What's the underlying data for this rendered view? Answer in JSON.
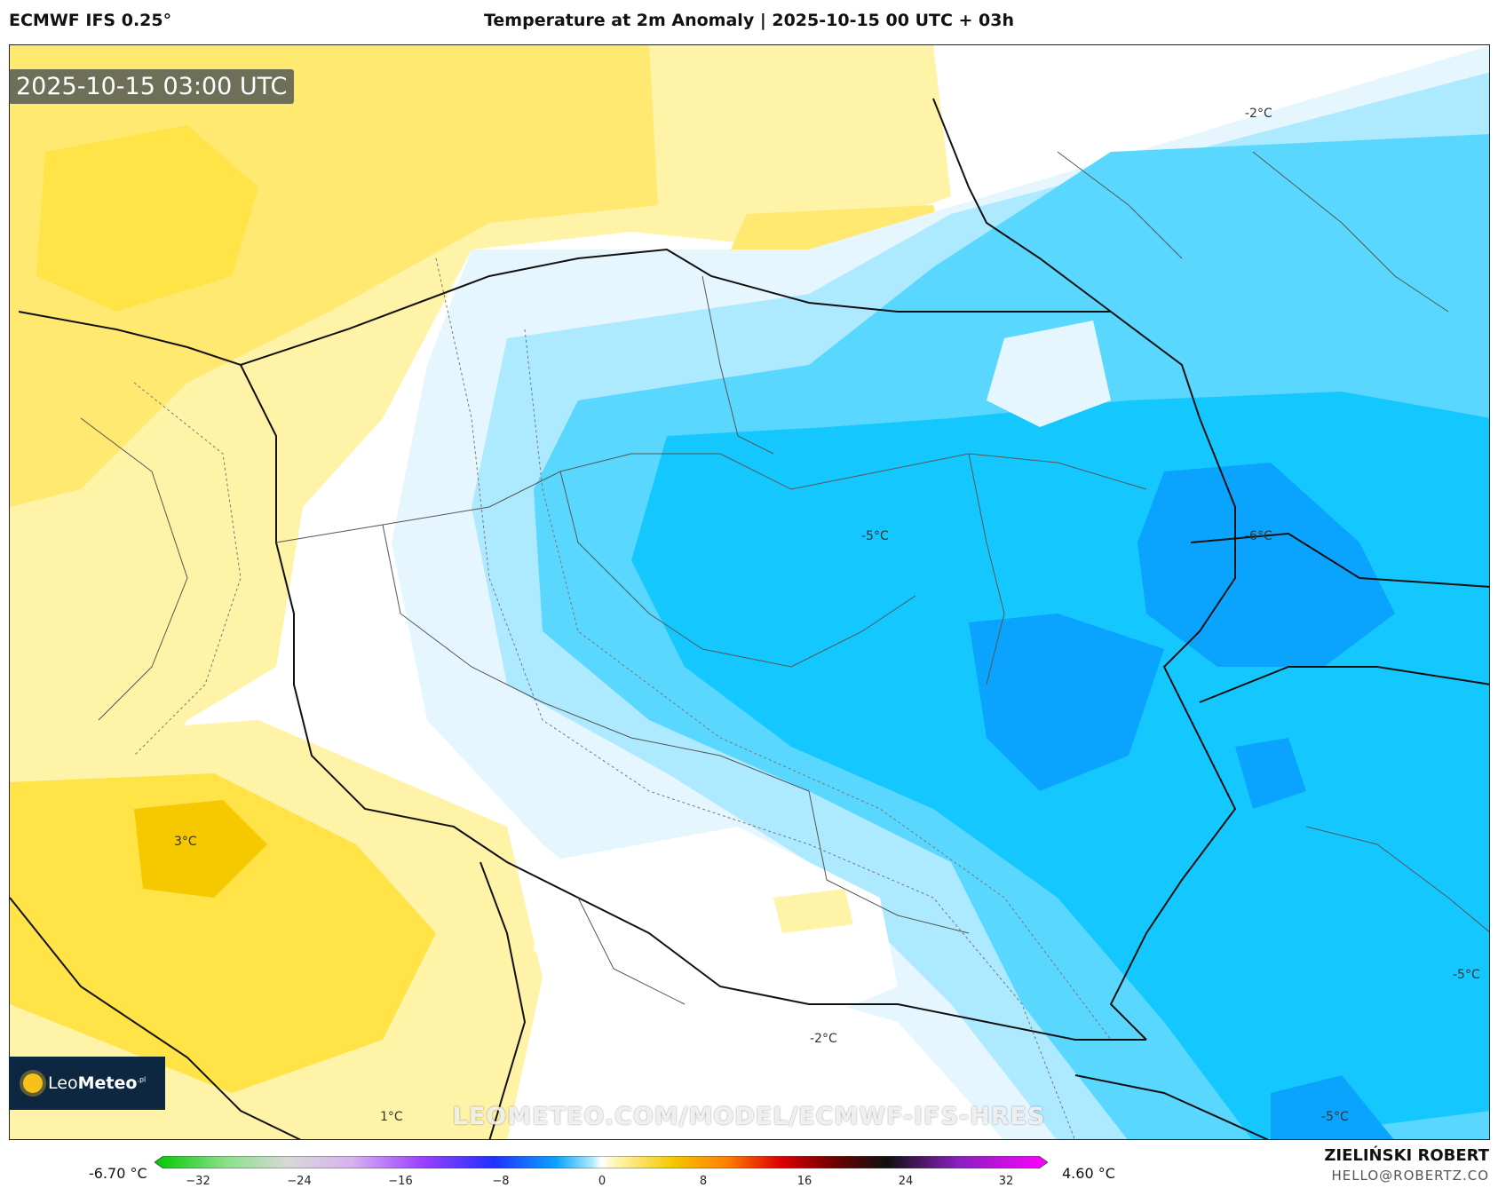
{
  "header": {
    "model": "ECMWF IFS 0.25°",
    "title": "Temperature at 2m Anomaly | 2025-10-15 00 UTC + 03h"
  },
  "map": {
    "timestamp": "2025-10-15 03:00 UTC",
    "watermark": "LEOMETEO.COM/MODEL/ECMWF-IFS-HRES",
    "logo_text_a": "Leo",
    "logo_text_b": "Meteo",
    "logo_text_c": ".pl",
    "contour_labels": [
      "-2°C",
      "-5°C",
      "-6°C",
      "3°C",
      "1°C",
      "-2°C",
      "-5°C",
      "-5°C"
    ],
    "colors": {
      "warm_light": "#fff3a8",
      "warm": "#ffe347",
      "warm_strong": "#f5c800",
      "neutral": "#ffffff",
      "cold_pale": "#e6f6ff",
      "cold_light": "#aeeaff",
      "cold": "#5ad7ff",
      "cold_mid": "#14c8ff",
      "cold_strong": "#0aa4ff"
    }
  },
  "colorbar": {
    "min_label": "-6.70 °C",
    "max_label": "4.60 °C",
    "ticks": [
      "−32",
      "−24",
      "−16",
      "−8",
      "0",
      "8",
      "16",
      "24",
      "32"
    ]
  },
  "footer": {
    "author": "ZIELIŃSKI ROBERT",
    "email": "HELLO@ROBERTZ.CO"
  }
}
